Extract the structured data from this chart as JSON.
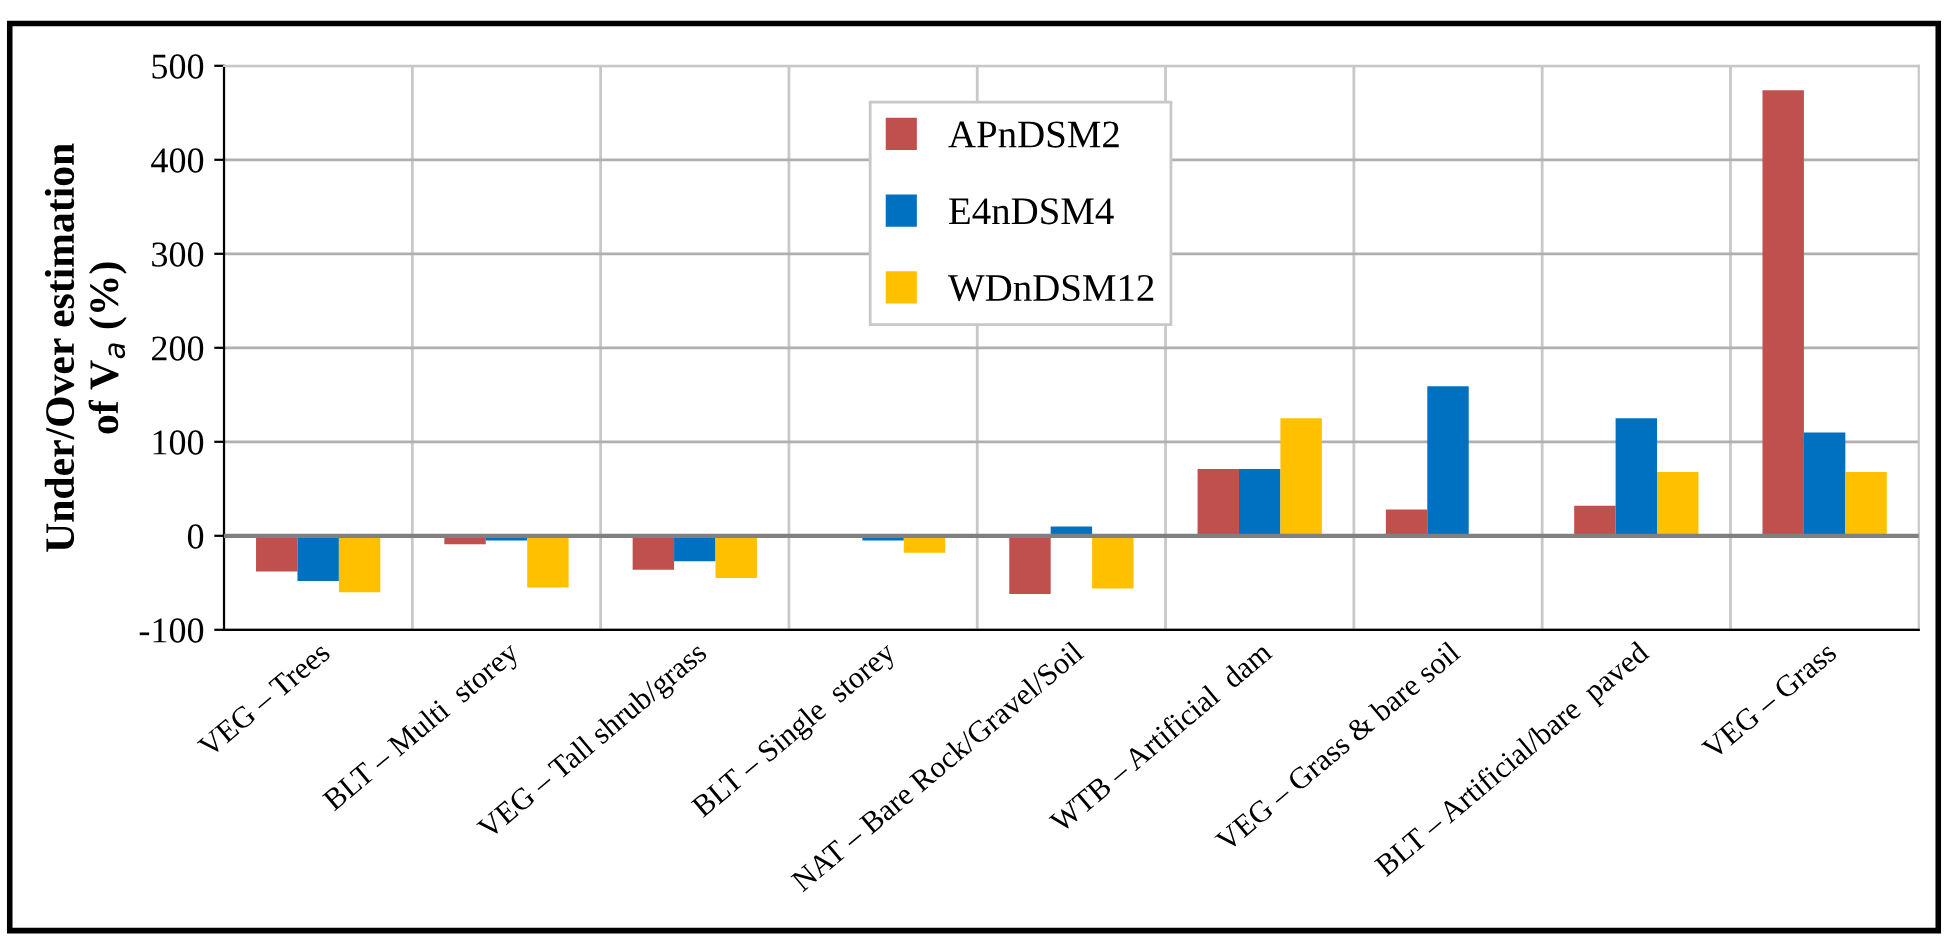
{
  "chart_data": {
    "type": "bar",
    "ylabel": "Under/Over estimation\nof V$_{a}$ (%)",
    "categories": [
      "VEG – Trees",
      "BLT – Multi  storey",
      "VEG – Tall shrub/grass",
      "BLT – Single  storey",
      "NAT – Bare Rock/Gravel/Soil",
      "WTB – Artificial  dam",
      "VEG – Grass & bare soil",
      "BLT – Artificial/bare  paved",
      "VEG – Grass"
    ],
    "series": [
      {
        "name": "APnDSM2",
        "color": "#c0504d",
        "values": [
          -38,
          -9,
          -36,
          0,
          -62,
          71,
          28,
          32,
          474
        ]
      },
      {
        "name": "E4nDSM4",
        "color": "#0070c0",
        "values": [
          -48,
          -5,
          -27,
          -5,
          10,
          71,
          159,
          125,
          110
        ]
      },
      {
        "name": "WDnDSM12",
        "color": "#ffc000",
        "values": [
          -60,
          -55,
          -45,
          -18,
          -56,
          125,
          0,
          68,
          68
        ]
      }
    ],
    "ylim": [
      -100,
      500
    ],
    "yticks": [
      -100,
      0,
      100,
      200,
      300,
      400,
      500
    ],
    "grid": true,
    "legend": "top"
  }
}
